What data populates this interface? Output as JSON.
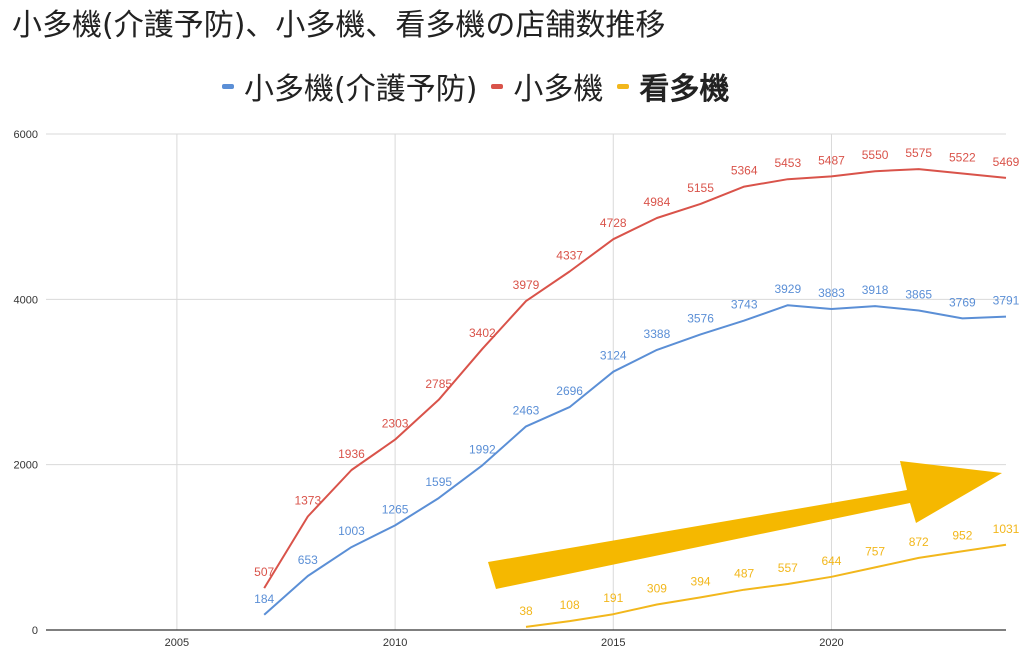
{
  "chart_data": {
    "type": "line",
    "title": "小多機(介護予防)、小多機、看多機の店舗数推移",
    "legend_position": "top",
    "grid": true,
    "xlim": [
      2002,
      2024
    ],
    "ylim": [
      0,
      6000
    ],
    "x_ticks": [
      "2005",
      "2010",
      "2015",
      "2020"
    ],
    "y_ticks": [
      "0",
      "2000",
      "4000",
      "6000"
    ],
    "series": [
      {
        "name": "小多機(介護予防)",
        "color": "#5b8fd6",
        "x": [
          2007,
          2008,
          2009,
          2010,
          2011,
          2012,
          2013,
          2014,
          2015,
          2016,
          2017,
          2018,
          2019,
          2020,
          2021,
          2022,
          2023,
          2024
        ],
        "values": [
          184,
          653,
          1003,
          1265,
          1595,
          1992,
          2463,
          2696,
          3124,
          3388,
          3576,
          3743,
          3929,
          3883,
          3918,
          3865,
          3769,
          3791
        ]
      },
      {
        "name": "小多機",
        "color": "#d9534a",
        "x": [
          2007,
          2008,
          2009,
          2010,
          2011,
          2012,
          2013,
          2014,
          2015,
          2016,
          2017,
          2018,
          2019,
          2020,
          2021,
          2022,
          2023,
          2024
        ],
        "values": [
          507,
          1373,
          1936,
          2303,
          2785,
          3402,
          3979,
          4337,
          4728,
          4984,
          5155,
          5364,
          5453,
          5487,
          5550,
          5575,
          5522,
          5469
        ]
      },
      {
        "name": "看多機",
        "color": "#f2b71c",
        "bold": true,
        "x": [
          2013,
          2014,
          2015,
          2016,
          2017,
          2018,
          2019,
          2020,
          2021,
          2022,
          2023,
          2024
        ],
        "values": [
          38,
          108,
          191,
          309,
          394,
          487,
          557,
          644,
          757,
          872,
          952,
          1031
        ]
      }
    ],
    "annotation": {
      "shape": "arrow",
      "color": "#f5b800",
      "direction": "up-right"
    }
  }
}
